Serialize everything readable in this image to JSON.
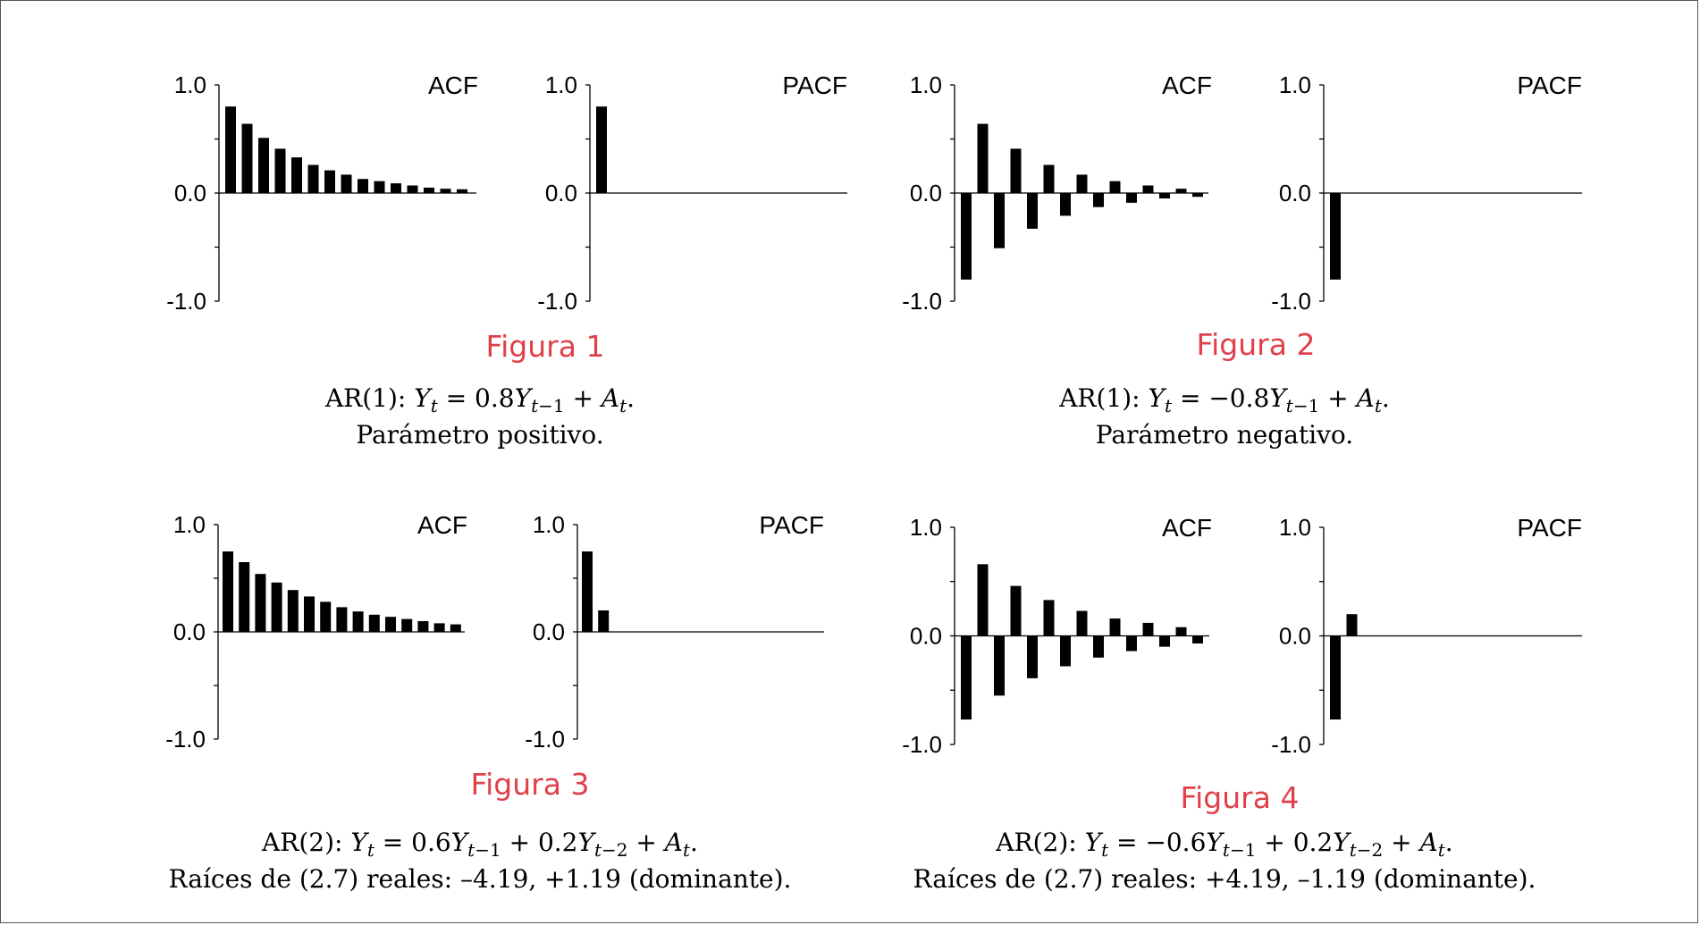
{
  "chart_data": [
    {
      "type": "bar",
      "figure_label": "Figura 1",
      "panels": [
        {
          "title": "ACF",
          "yticks": [
            "1.0",
            "0.0",
            "-1.0"
          ],
          "ylim": [
            -1,
            1
          ],
          "values": [
            0.8,
            0.64,
            0.51,
            0.41,
            0.33,
            0.26,
            0.21,
            0.17,
            0.13,
            0.11,
            0.09,
            0.07,
            0.05,
            0.04,
            0.035
          ]
        },
        {
          "title": "PACF",
          "yticks": [
            "1.0",
            "0.0",
            "-1.0"
          ],
          "ylim": [
            -1,
            1
          ],
          "values": [
            0.8
          ]
        }
      ]
    },
    {
      "type": "bar",
      "figure_label": "Figura 2",
      "panels": [
        {
          "title": "ACF",
          "yticks": [
            "1.0",
            "0.0",
            "-1.0"
          ],
          "ylim": [
            -1,
            1
          ],
          "values": [
            -0.8,
            0.64,
            -0.51,
            0.41,
            -0.33,
            0.26,
            -0.21,
            0.17,
            -0.13,
            0.11,
            -0.09,
            0.07,
            -0.05,
            0.04,
            -0.035
          ]
        },
        {
          "title": "PACF",
          "yticks": [
            "1.0",
            "0.0",
            "-1.0"
          ],
          "ylim": [
            -1,
            1
          ],
          "values": [
            -0.8
          ]
        }
      ]
    },
    {
      "type": "bar",
      "figure_label": "Figura 3",
      "panels": [
        {
          "title": "ACF",
          "yticks": [
            "1.0",
            "0.0",
            "-1.0"
          ],
          "ylim": [
            -1,
            1
          ],
          "values": [
            0.75,
            0.65,
            0.54,
            0.46,
            0.39,
            0.33,
            0.28,
            0.23,
            0.19,
            0.16,
            0.14,
            0.12,
            0.1,
            0.08,
            0.07
          ]
        },
        {
          "title": "PACF",
          "yticks": [
            "1.0",
            "0.0",
            "-1.0"
          ],
          "ylim": [
            -1,
            1
          ],
          "values": [
            0.75,
            0.2
          ]
        }
      ]
    },
    {
      "type": "bar",
      "figure_label": "Figura 4",
      "panels": [
        {
          "title": "ACF",
          "yticks": [
            "1.0",
            "0.0",
            "-1.0"
          ],
          "ylim": [
            -1,
            1
          ],
          "values": [
            -0.77,
            0.66,
            -0.55,
            0.46,
            -0.39,
            0.33,
            -0.28,
            0.23,
            -0.2,
            0.16,
            -0.14,
            0.12,
            -0.1,
            0.08,
            -0.07
          ]
        },
        {
          "title": "PACF",
          "yticks": [
            "1.0",
            "0.0",
            "-1.0"
          ],
          "ylim": [
            -1,
            1
          ],
          "values": [
            -0.77,
            0.2
          ]
        }
      ]
    }
  ],
  "captions": [
    {
      "prefix": "AR(1): ",
      "equation": "Y_t = 0.8Y_{t−1} + A_t.",
      "line2": "Parámetro positivo."
    },
    {
      "prefix": "AR(1): ",
      "equation": "Y_t = −0.8Y_{t−1} + A_t.",
      "line2": "Parámetro negativo."
    },
    {
      "prefix": "AR(2): ",
      "equation": "Y_t = 0.6Y_{t−1} + 0.2Y_{t−2} + A_t.",
      "line2": "Raíces de (2.7) reales: –4.19, +1.19 (dominante)."
    },
    {
      "prefix": "AR(2): ",
      "equation": "Y_t = −0.6Y_{t−1} + 0.2Y_{t−2} + A_t.",
      "line2": "Raíces de (2.7) reales: +4.19, –1.19 (dominante)."
    }
  ]
}
